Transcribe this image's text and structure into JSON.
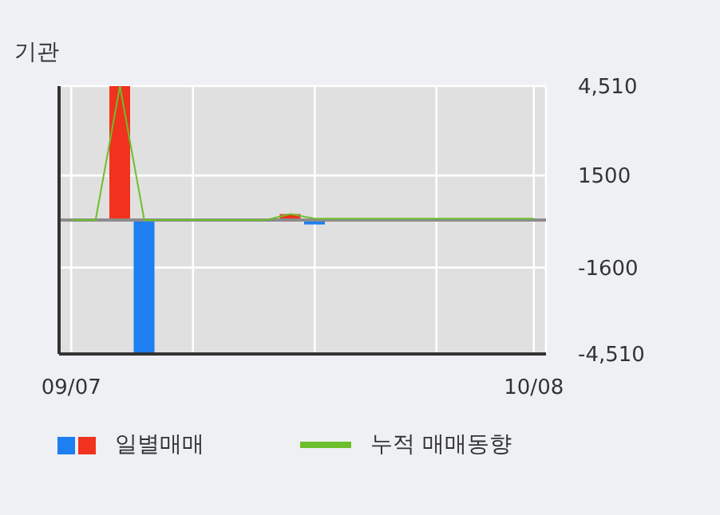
{
  "chart_data": {
    "type": "bar",
    "title": "기관",
    "categories": [
      "09/07",
      null,
      null,
      null,
      null,
      null,
      null,
      null,
      null,
      null,
      null,
      null,
      null,
      null,
      null,
      null,
      null,
      null,
      null,
      "10/08"
    ],
    "series": [
      {
        "name": "일별매매",
        "values": [
          0,
          0,
          4510,
          -4510,
          0,
          0,
          0,
          0,
          0,
          200,
          -150,
          0,
          0,
          0,
          0,
          0,
          0,
          0,
          0,
          0
        ],
        "colors": [
          "#f0321e",
          "#f0321e",
          "#f0321e",
          "#1e7ff0",
          "#f0321e",
          "#f0321e",
          "#f0321e",
          "#f0321e",
          "#f0321e",
          "#f0321e",
          "#1e7ff0",
          "#f0321e",
          "#f0321e",
          "#f0321e",
          "#f0321e",
          "#f0321e",
          "#f0321e",
          "#f0321e",
          "#f0321e",
          "#f0321e"
        ]
      },
      {
        "name": "누적 매매동향",
        "type": "line",
        "color": "#6cbf2a",
        "values": [
          0,
          0,
          4510,
          0,
          0,
          0,
          0,
          0,
          0,
          200,
          50,
          50,
          50,
          50,
          50,
          50,
          50,
          50,
          50,
          50
        ]
      }
    ],
    "ylim": [
      -4510,
      4510
    ],
    "yticks": [
      {
        "value": 4510,
        "label": "4,510"
      },
      1500,
      -1600,
      {
        "value": -4510,
        "label": "-4,510"
      }
    ],
    "ref_lines": [
      {
        "axis": "y",
        "value": 0,
        "color": "#8c8c8c"
      }
    ],
    "grid": true,
    "legend": "bottom",
    "marker": "none"
  }
}
